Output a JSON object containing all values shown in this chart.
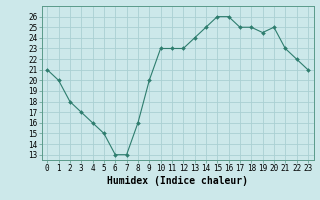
{
  "x": [
    0,
    1,
    2,
    3,
    4,
    5,
    6,
    7,
    8,
    9,
    10,
    11,
    12,
    13,
    14,
    15,
    16,
    17,
    18,
    19,
    20,
    21,
    22,
    23
  ],
  "y": [
    21,
    20,
    18,
    17,
    16,
    15,
    13,
    13,
    16,
    20,
    23,
    23,
    23,
    24,
    25,
    26,
    26,
    25,
    25,
    24.5,
    25,
    23,
    22,
    21
  ],
  "line_color": "#2e7d6e",
  "marker_color": "#2e7d6e",
  "bg_color": "#cce8ea",
  "grid_color": "#aad0d3",
  "xlabel": "Humidex (Indice chaleur)",
  "xlabel_fontsize": 7,
  "ylim": [
    12.5,
    27.0
  ],
  "xlim": [
    -0.5,
    23.5
  ],
  "yticks": [
    13,
    14,
    15,
    16,
    17,
    18,
    19,
    20,
    21,
    22,
    23,
    24,
    25,
    26
  ],
  "tick_fontsize": 5.5
}
